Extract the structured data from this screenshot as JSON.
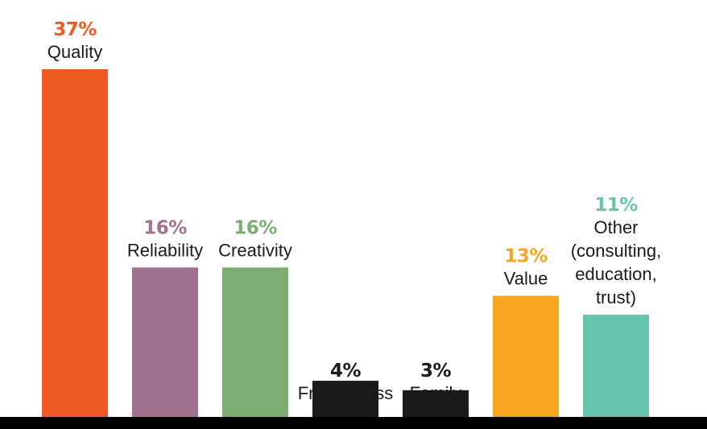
{
  "chart_data": {
    "type": "bar",
    "title": "",
    "xlabel": "",
    "ylabel": "",
    "ylim": [
      0,
      37
    ],
    "grid": false,
    "legend": "none",
    "categories": [
      [
        "Quality"
      ],
      [
        "Reliability"
      ],
      [
        "Creativity"
      ],
      [
        "Friendliness"
      ],
      [
        "Family"
      ],
      [
        "Value"
      ],
      [
        "Other",
        "(consulting,",
        "education,",
        "trust)"
      ]
    ],
    "values": [
      37,
      16,
      16,
      4,
      3,
      13,
      11
    ],
    "value_labels": [
      "37%",
      "16%",
      "16%",
      "4%",
      "3%",
      "13%",
      "11%"
    ],
    "colors": [
      "#f05a24",
      "#a0708f",
      "#7cad73",
      "#1a1a1a",
      "#1a1a1a",
      "#f8a622",
      "#67c5ae"
    ],
    "label_colors": [
      "#f05a24",
      "#a0708f",
      "#7cad73",
      "#1a1a1a",
      "#1a1a1a",
      "#f8a622",
      "#67c5ae"
    ]
  }
}
